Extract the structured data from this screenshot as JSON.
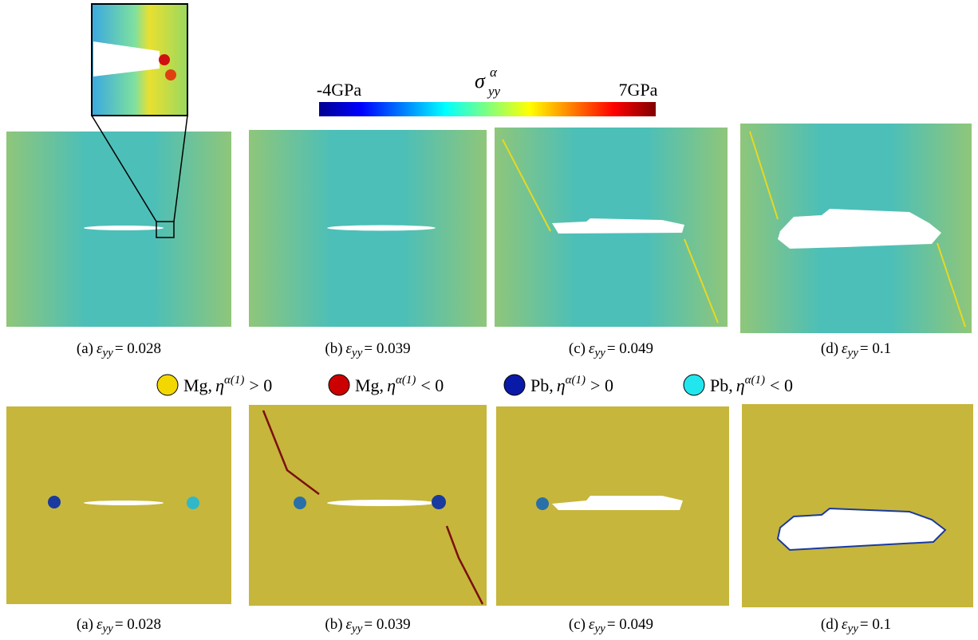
{
  "colorbar": {
    "symbol": "σ",
    "superscript": "α",
    "subscript": "yy",
    "min_label": "-4GPa",
    "max_label": "7GPa"
  },
  "strain_symbol": "ε",
  "strain_subscript": "yy",
  "top_row": [
    {
      "label": "(a)",
      "value": "= 0.028"
    },
    {
      "label": "(b)",
      "value": "= 0.039"
    },
    {
      "label": "(c)",
      "value": "= 0.049"
    },
    {
      "label": "(d)",
      "value": "= 0.1"
    }
  ],
  "legend": [
    {
      "element": "Mg,",
      "symbol": "η",
      "superscript": "α(1)",
      "relation": "> 0",
      "color": "#f2d800"
    },
    {
      "element": "Mg,",
      "symbol": "η",
      "superscript": "α(1)",
      "relation": "< 0",
      "color": "#cc0000"
    },
    {
      "element": "Pb,",
      "symbol": "η",
      "superscript": "α(1)",
      "relation": "> 0",
      "color": "#0a1aa8"
    },
    {
      "element": "Pb,",
      "symbol": "η",
      "superscript": "α(1)",
      "relation": "< 0",
      "color": "#22e6ee"
    }
  ],
  "bottom_row": [
    {
      "label": "(a)",
      "value": "= 0.028"
    },
    {
      "label": "(b)",
      "value": "= 0.039"
    },
    {
      "label": "(c)",
      "value": "= 0.049"
    },
    {
      "label": "(d)",
      "value": "= 0.1"
    }
  ]
}
